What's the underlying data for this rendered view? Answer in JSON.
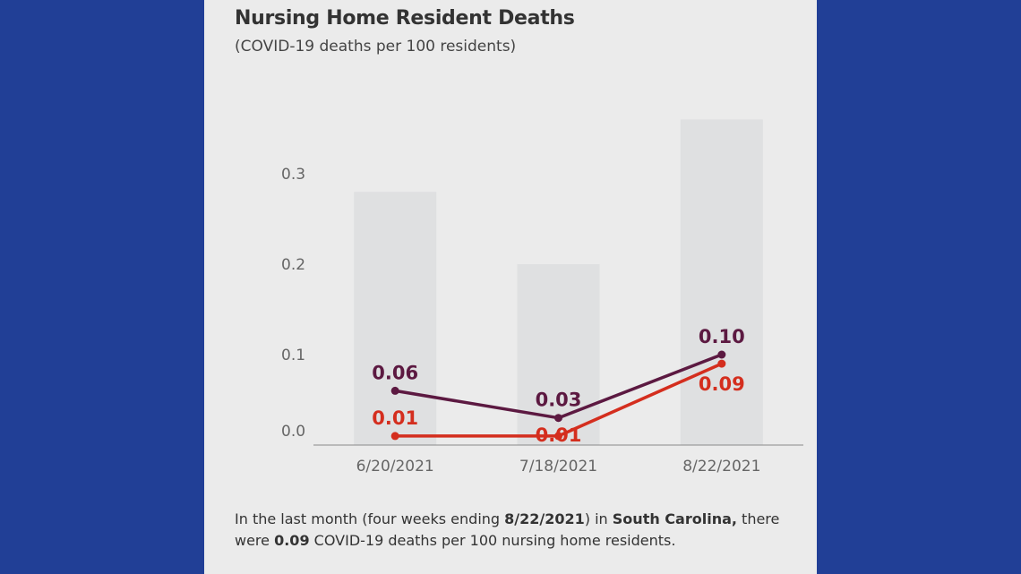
{
  "chart_data": {
    "type": "bar",
    "title": "Nursing Home Resident Deaths",
    "subtitle": "(COVID-19 deaths per 100 residents)",
    "categories": [
      "6/20/2021",
      "7/18/2021",
      "8/22/2021"
    ],
    "bar_values": [
      0.28,
      0.2,
      0.36
    ],
    "series": [
      {
        "values": [
          0.06,
          0.03,
          0.1
        ],
        "labels": [
          "0.06",
          "0.03",
          "0.10"
        ],
        "color": "#5c1941",
        "label_side": [
          "above",
          "above",
          "above"
        ]
      },
      {
        "values": [
          0.01,
          0.01,
          0.09
        ],
        "labels": [
          "0.01",
          "0.01",
          "0.09"
        ],
        "color": "#d42e1e",
        "label_side": [
          "above",
          "on",
          "below"
        ]
      }
    ],
    "y_ticks": [
      "0.0",
      "0.1",
      "0.2",
      "0.3"
    ],
    "ylim": [
      0,
      0.36
    ],
    "bar_color": "#dfe0e1",
    "grid": false
  },
  "note": {
    "prefix": "In the last month (four weeks ending ",
    "date": "8/22/2021",
    "mid": ") in ",
    "state": "South Carolina,",
    "mid2": " there were ",
    "value": "0.09",
    "suffix": " COVID-19 deaths per 100 nursing home residents."
  }
}
